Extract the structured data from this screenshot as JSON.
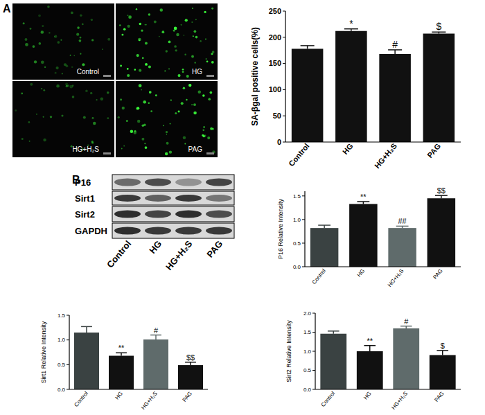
{
  "figure": {
    "panel_labels": [
      "A",
      "B"
    ],
    "micrographs": [
      "Control",
      "HG",
      "HG+H₂S",
      "PAG"
    ],
    "blot": {
      "rows": [
        "P16",
        "Sirt1",
        "Sirt2",
        "GAPDH"
      ],
      "lanes": [
        "Control",
        "HG",
        "HG+H₂S",
        "PAG"
      ]
    }
  },
  "chart_data": [
    {
      "type": "bar",
      "y_label": "SA-βgal positive cells(%)",
      "categories": [
        "Control",
        "HG",
        "HG+H₂S",
        "PAG"
      ],
      "values": [
        178,
        212,
        168,
        207
      ],
      "errors": [
        6,
        4,
        8,
        3
      ],
      "annotations": [
        null,
        "*",
        "#",
        "$"
      ],
      "colors": [
        "#111111",
        "#111111",
        "#111111",
        "#111111"
      ],
      "ylim": [
        0,
        250
      ],
      "yticks": [
        0,
        50,
        100,
        150,
        200,
        250
      ]
    },
    {
      "type": "bar",
      "y_label": "P16 Relative Intensity",
      "categories": [
        "Control",
        "HG",
        "HG+H₂S",
        "PAG"
      ],
      "values": [
        0.82,
        1.33,
        0.82,
        1.45
      ],
      "errors": [
        0.06,
        0.05,
        0.04,
        0.06
      ],
      "annotations": [
        null,
        "**",
        "##",
        "$$"
      ],
      "colors": [
        "#3a4242",
        "#111111",
        "#5f6b6b",
        "#111111"
      ],
      "ylim": [
        0,
        1.6
      ],
      "yticks": [
        {
          "value": 0,
          "label": "0.0"
        },
        0.5,
        {
          "value": 1,
          "label": "1.0"
        },
        1.5
      ]
    },
    {
      "type": "bar",
      "y_label": "Sirt1 Relative Intensity",
      "categories": [
        "Control",
        "HG",
        "HG+H₂S",
        "PAG"
      ],
      "values": [
        1.15,
        0.68,
        1.01,
        0.49
      ],
      "errors": [
        0.12,
        0.06,
        0.09,
        0.06
      ],
      "annotations": [
        null,
        "**",
        "#",
        "$$"
      ],
      "colors": [
        "#3a4242",
        "#111111",
        "#5f6b6b",
        "#111111"
      ],
      "ylim": [
        0,
        1.5
      ],
      "yticks": [
        {
          "value": 0,
          "label": "0.0"
        },
        0.5,
        {
          "value": 1,
          "label": "1.0"
        },
        1.5
      ]
    },
    {
      "type": "bar",
      "y_label": "Sirt2 Relative Intensity",
      "categories": [
        "Control",
        "HG",
        "HG+H₂S",
        "PAG"
      ],
      "values": [
        1.46,
        1.0,
        1.6,
        0.9
      ],
      "errors": [
        0.07,
        0.15,
        0.06,
        0.12
      ],
      "annotations": [
        null,
        "**",
        "#",
        "$"
      ],
      "colors": [
        "#3a4242",
        "#111111",
        "#5f6b6b",
        "#111111"
      ],
      "ylim": [
        0,
        2
      ],
      "yticks": [
        {
          "value": 0,
          "label": "0.0"
        },
        0.5,
        {
          "value": 1,
          "label": "1.0"
        },
        1.5,
        {
          "value": 2,
          "label": "2.0"
        }
      ]
    }
  ]
}
